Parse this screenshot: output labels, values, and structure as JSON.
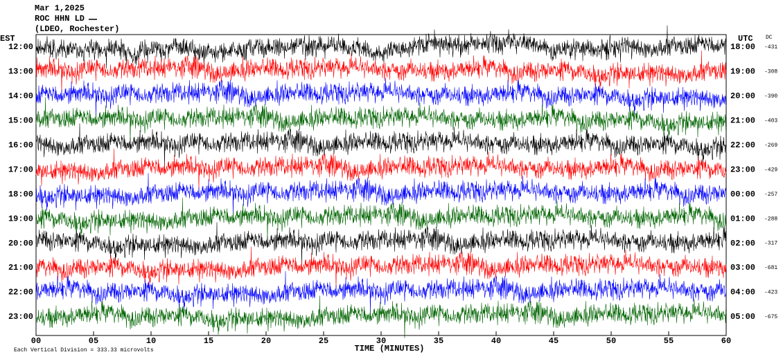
{
  "chart_data": {
    "type": "helicorder",
    "title": "Mar 1,2025",
    "station": "ROC HHN LD",
    "network": "(LDEO, Rochester)",
    "left_axis_label": "EST",
    "right_axis_label": "UTC",
    "dc_label": "DC",
    "x_label": "TIME (MINUTES)",
    "scale_note": "Each Vertical Division =  333.33 microvolts",
    "xlim": [
      0,
      60
    ],
    "xticks": [
      {
        "value": 0,
        "label": "00"
      },
      {
        "value": 5,
        "label": "05"
      },
      10,
      15,
      20,
      25,
      30,
      35,
      40,
      45,
      50,
      55,
      60
    ],
    "rows": {
      "est": [
        "12:00",
        "13:00",
        "14:00",
        "15:00",
        "16:00",
        "17:00",
        "18:00",
        "19:00",
        "20:00",
        "21:00",
        "22:00",
        "23:00"
      ],
      "utc": [
        "18:00",
        "19:00",
        "20:00",
        "21:00",
        "22:00",
        "23:00",
        "00:00",
        "01:00",
        "02:00",
        "03:00",
        "04:00",
        "05:00"
      ],
      "dc": [
        -431,
        -308,
        -390,
        -403,
        -269,
        -429,
        -257,
        -288,
        -317,
        -681,
        -423,
        -675
      ],
      "colors": [
        "#000000",
        "#ff0000",
        "#0000ff",
        "#006400",
        "#000000",
        "#ff0000",
        "#0000ff",
        "#006400",
        "#000000",
        "#ff0000",
        "#0000ff",
        "#006400"
      ]
    }
  }
}
